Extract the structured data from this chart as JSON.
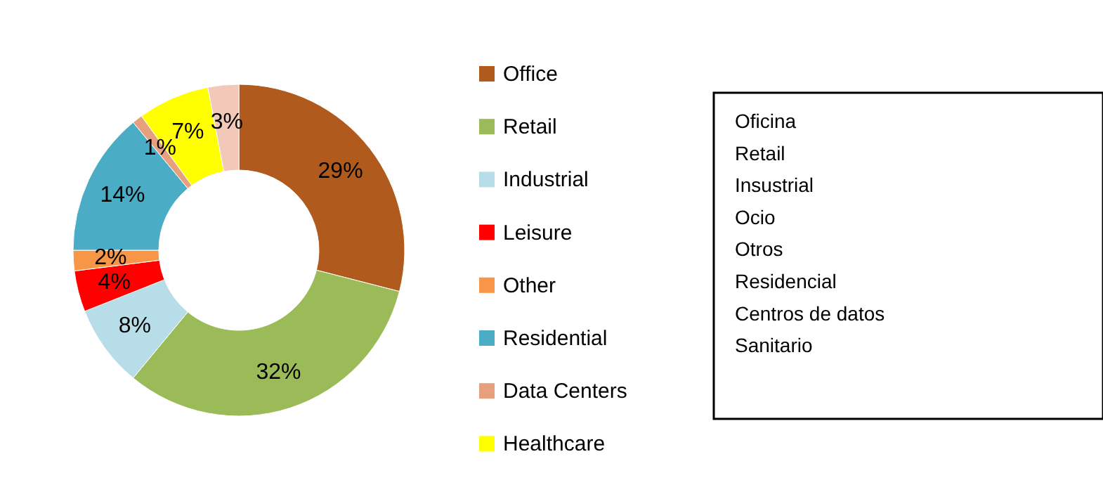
{
  "chart_data": {
    "type": "donut",
    "categories": [
      "Office",
      "Retail",
      "Industrial",
      "Leisure",
      "Other",
      "Residential",
      "Data Centers",
      "Healthcare",
      null
    ],
    "values": [
      29,
      32,
      8,
      4,
      2,
      14,
      1,
      7,
      3
    ],
    "colors": [
      "#b05a1e",
      "#9bbb59",
      "#b7dde8",
      "#ff0000",
      "#f79646",
      "#4bacc6",
      "#e6a07e",
      "#ffff00",
      "#f2c8b8"
    ],
    "value_labels": [
      "29%",
      "32%",
      "8%",
      "4%",
      "2%",
      "14%",
      "1%",
      "7%",
      "3%"
    ],
    "legend": "right",
    "annotations": [
      "Oficina",
      "Retail",
      "Insustrial",
      "Ocio",
      "Otros",
      "Residencial",
      "Centros de datos",
      "Sanitario"
    ]
  }
}
